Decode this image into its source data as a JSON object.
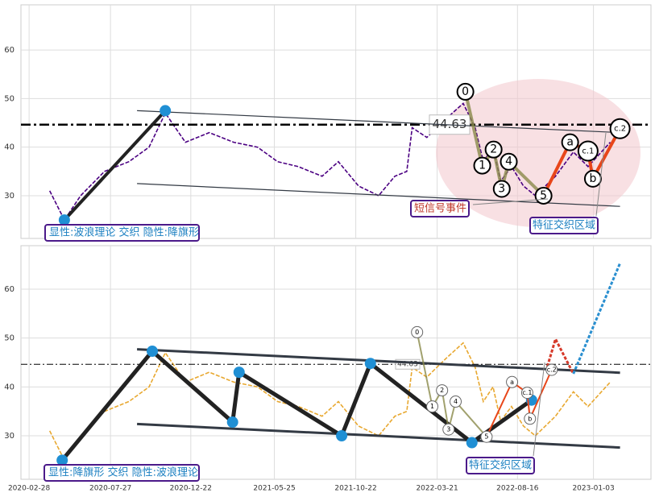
{
  "chart_data": [
    {
      "type": "line",
      "color": "#4b0082",
      "x": [
        "2020-04-06",
        "2020-05-03",
        "2020-06-02",
        "2020-07-16",
        "2020-08-30",
        "2020-10-06",
        "2020-11-05",
        "2020-12-12",
        "2021-01-25",
        "2021-03-11",
        "2021-04-24",
        "2021-05-31",
        "2021-07-08",
        "2021-08-21",
        "2021-09-20",
        "2021-10-27",
        "2021-12-03",
        "2022-01-02",
        "2022-01-24",
        "2022-02-03",
        "2022-03-02",
        "2022-04-08",
        "2022-05-08",
        "2022-05-30",
        "2022-06-14",
        "2022-07-02",
        "2022-07-16",
        "2022-08-05",
        "2022-08-27",
        "2022-09-18",
        "2022-10-25",
        "2022-11-27",
        "2022-12-24",
        "2023-02-03"
      ],
      "values": [
        31,
        25,
        30,
        35,
        37,
        40,
        47,
        41,
        43,
        41,
        40,
        37,
        36,
        34,
        37,
        32,
        30,
        34,
        35,
        44,
        42,
        46,
        49,
        44,
        37,
        40,
        33,
        36,
        32,
        30,
        34,
        39,
        36,
        41
      ],
      "xlim": [
        "2020-02-13",
        "2023-04-19"
      ],
      "ylim": [
        21.2,
        69.3
      ],
      "yticks": [
        30,
        40,
        50,
        60
      ],
      "grid": true,
      "level": 44.63,
      "channel": [
        {
          "x": [
            "2020-09-14",
            "2023-02-21"
          ],
          "values": [
            47.5,
            43
          ]
        },
        {
          "x": [
            "2020-09-14",
            "2023-02-21"
          ],
          "values": [
            32.5,
            27.8
          ]
        }
      ],
      "trend": {
        "x": [
          "2020-05-03",
          "2020-11-05"
        ],
        "values": [
          25,
          47.5
        ]
      },
      "waves": {
        "labels": [
          "0",
          "1",
          "2",
          "3",
          "4",
          "5",
          "a",
          "c.1",
          "b",
          "c.2"
        ],
        "x": [
          "2022-05-12",
          "2022-06-12",
          "2022-07-03",
          "2022-07-18",
          "2022-07-31",
          "2022-10-03",
          "2022-11-21",
          "2022-12-24",
          "2023-01-02",
          "2023-02-21"
        ],
        "values": [
          51.4,
          36.2,
          39.5,
          31.4,
          37,
          30,
          41,
          39.2,
          33.5,
          43.8
        ]
      },
      "annotations": [
        "显性:波浪理论 交织 隐性:降旗形",
        "短信号事件",
        "特征交织区域"
      ]
    },
    {
      "type": "line",
      "color": "#e8a830",
      "x": [
        "2020-04-06",
        "2020-05-03",
        "2020-06-02",
        "2020-07-16",
        "2020-08-30",
        "2020-10-06",
        "2020-11-05",
        "2020-12-12",
        "2021-01-25",
        "2021-03-11",
        "2021-04-24",
        "2021-05-31",
        "2021-07-08",
        "2021-08-21",
        "2021-09-20",
        "2021-10-27",
        "2021-12-03",
        "2022-01-02",
        "2022-01-24",
        "2022-02-03",
        "2022-03-02",
        "2022-04-08",
        "2022-05-08",
        "2022-05-30",
        "2022-06-14",
        "2022-07-02",
        "2022-07-16",
        "2022-08-05",
        "2022-08-27",
        "2022-09-18",
        "2022-10-25",
        "2022-11-27",
        "2022-12-24",
        "2023-02-03"
      ],
      "values": [
        31,
        25,
        30,
        35,
        37,
        40,
        47,
        41,
        43,
        41,
        40,
        37,
        36,
        34,
        37,
        32,
        30,
        34,
        35,
        44,
        42,
        46,
        49,
        44,
        37,
        40,
        33,
        36,
        32,
        30,
        34,
        39,
        36,
        41
      ],
      "xlim": [
        "2020-02-13",
        "2023-04-19"
      ],
      "ylim": [
        21.1,
        68.9
      ],
      "yticks": [
        30,
        40,
        50,
        60
      ],
      "grid": true,
      "xticks": [
        "2020-02-28",
        "2020-07-27",
        "2020-12-22",
        "2021-05-25",
        "2021-10-22",
        "2022-03-21",
        "2022-08-16",
        "2023-01-03"
      ],
      "level": 44.63,
      "channel": [
        {
          "x": [
            "2020-09-14",
            "2023-02-21"
          ],
          "values": [
            47.7,
            42.9
          ]
        },
        {
          "x": [
            "2020-09-14",
            "2023-02-21"
          ],
          "values": [
            32.4,
            27.6
          ]
        }
      ],
      "trend": {
        "x": [
          "2020-04-29",
          "2020-10-12",
          "2021-03-09",
          "2021-03-21",
          "2021-09-26",
          "2021-11-18",
          "2022-05-24",
          "2022-09-11"
        ],
        "values": [
          25,
          47.3,
          32.8,
          43,
          30,
          44.8,
          28.6,
          37.3
        ]
      },
      "projection": {
        "x": [
          "2022-10-10",
          "2022-10-25",
          "2022-11-27",
          "2023-02-21"
        ],
        "values": [
          44.2,
          49.8,
          42.7,
          65.3
        ]
      },
      "waves": {
        "labels": [
          "0",
          "1",
          "2",
          "3",
          "4",
          "5",
          "a",
          "c.1",
          "b",
          "c.2"
        ],
        "x": [
          "2022-02-12",
          "2022-03-12",
          "2022-03-30",
          "2022-04-11",
          "2022-04-24",
          "2022-06-20",
          "2022-08-06",
          "2022-09-03",
          "2022-09-08",
          "2022-10-18"
        ],
        "values": [
          51.2,
          36,
          39.3,
          31.3,
          37,
          29.8,
          41,
          38.8,
          33.5,
          43.5
        ]
      },
      "annotations": [
        "显性:降旗形 交织 隐性:波浪理论",
        "特征交织区域"
      ]
    }
  ]
}
